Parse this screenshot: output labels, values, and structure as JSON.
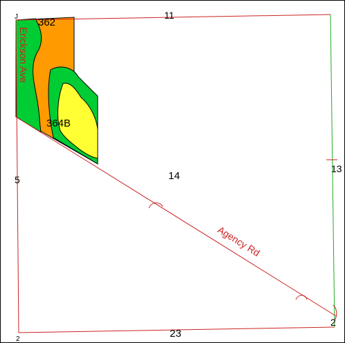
{
  "map": {
    "colors": {
      "unit_362": "#ff9a00",
      "unit_364B": "#ffff33",
      "green_zone": "#00cc33",
      "parcel_line": "#cc2222",
      "road_label": "#cc2222",
      "section_line_green": "#22aa22",
      "outline": "#000000"
    },
    "soil_units": [
      {
        "id": "362",
        "label": "362"
      },
      {
        "id": "364B",
        "label": "364B"
      }
    ],
    "roads": [
      {
        "id": "erickson",
        "label": "Erickson Ave"
      },
      {
        "id": "agency",
        "label": "Agency Rd"
      }
    ],
    "section_numbers": {
      "center": "14",
      "top": "11",
      "left": "5",
      "right": "13",
      "bottom": "23",
      "bottom_right": "2",
      "top_left": "J",
      "bottom_left": "2"
    }
  }
}
